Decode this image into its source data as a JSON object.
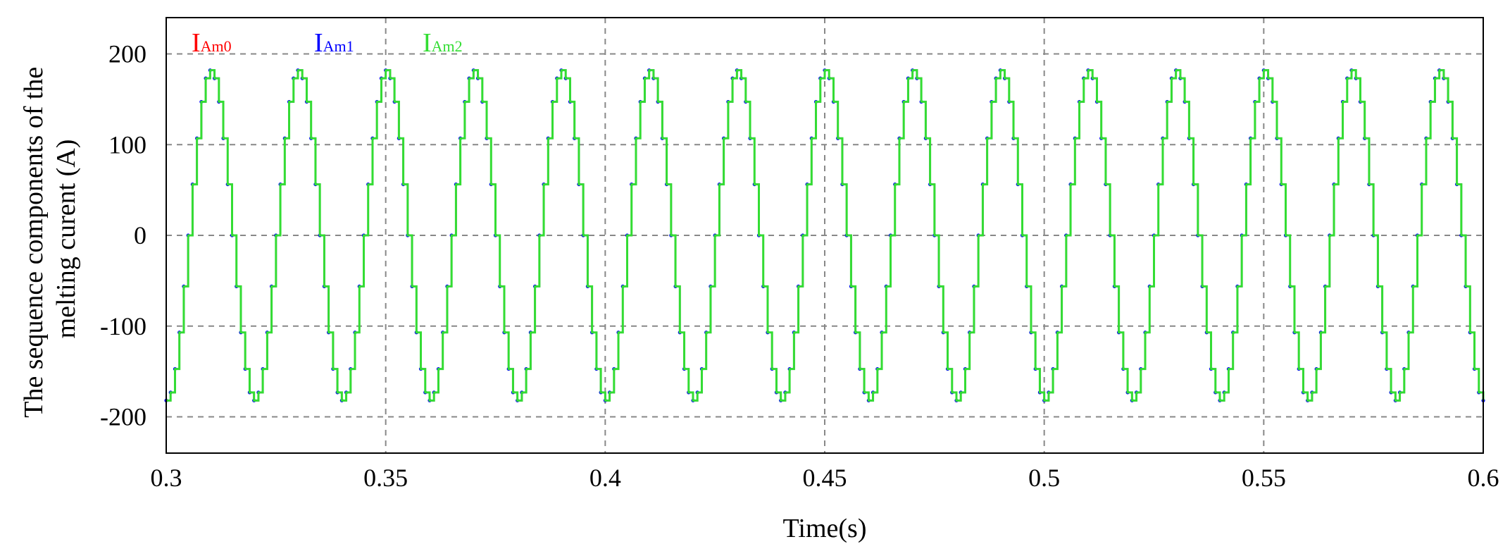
{
  "chart_data": {
    "type": "line",
    "title": "",
    "xlabel": "Time(s)",
    "ylabel_lines": [
      "The sequence components of the",
      "melting curent (A)"
    ],
    "xlim": [
      0.3,
      0.6
    ],
    "ylim": [
      -240,
      240
    ],
    "x_ticks": [
      0.3,
      0.35,
      0.4,
      0.45,
      0.5,
      0.55,
      0.6
    ],
    "x_tick_labels": [
      "0.3",
      "0.35",
      "0.4",
      "0.45",
      "0.5",
      "0.55",
      "0.6"
    ],
    "y_ticks": [
      -200,
      -100,
      0,
      100,
      200
    ],
    "y_tick_labels": [
      "-200",
      "-100",
      "0",
      "100",
      "200"
    ],
    "grid": true,
    "grid_style": "dashed",
    "legend_position": "top-left",
    "x_sample_step": 0.001,
    "series": [
      {
        "name": "I",
        "name_subscript": "Am0",
        "color": "#ff0000",
        "waveform": "sine",
        "amplitude": 182,
        "frequency_hz": 50,
        "peak_time": 0.31,
        "sample_step": 0.001
      },
      {
        "name": "I",
        "name_subscript": "Am1",
        "color": "#0000ff",
        "waveform": "sine",
        "amplitude": 182,
        "frequency_hz": 50,
        "peak_time": 0.31,
        "sample_step": 0.001
      },
      {
        "name": "I",
        "name_subscript": "Am2",
        "color": "#33dd33",
        "waveform": "sine",
        "amplitude": 182,
        "frequency_hz": 50,
        "peak_time": 0.31,
        "sample_step": 0.001
      }
    ]
  }
}
